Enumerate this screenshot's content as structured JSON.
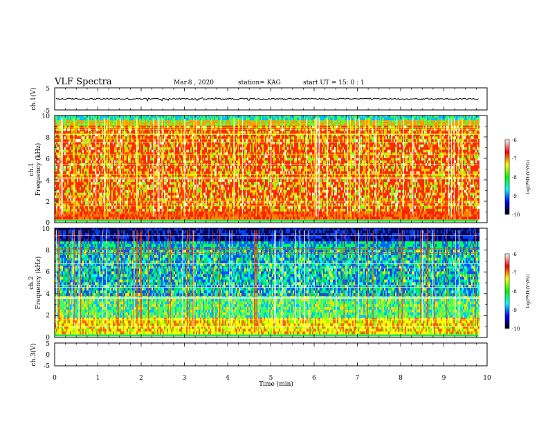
{
  "header": {
    "title": "VLF Spectra",
    "date": "Mar.8 , 2020",
    "station": "station= KAG",
    "start": "start UT = 15: 0 : 1"
  },
  "colorbar": {
    "label": "log(PSD)(V²/Hz)",
    "ticks": [
      "-6",
      "-7",
      "-8",
      "-9",
      "-10"
    ],
    "stops": [
      "#ffffff",
      "#ff0000",
      "#ffff00",
      "#00ff00",
      "#00ffff",
      "#0000ff",
      "#000000"
    ]
  },
  "chart_data": [
    {
      "type": "line",
      "panel": "ch1-waveform",
      "ylabel": "ch.1(V)",
      "ylim": [
        -5,
        5
      ],
      "y_tick_labels": [
        "5",
        "-5"
      ],
      "xlim": [
        0,
        10
      ],
      "x_unit": "min",
      "trace_level_V": 0,
      "trace_color": "#000000"
    },
    {
      "type": "heatmap",
      "panel": "ch1-spectrogram",
      "ylabel_channel": "ch.1",
      "ylabel": "Frequency (kHz)",
      "y_tick_labels": [
        "0",
        "2",
        "4",
        "6",
        "8",
        "10"
      ],
      "ylim": [
        0,
        10
      ],
      "xlim": [
        0,
        10
      ],
      "data_extent_min": 9.8,
      "value_range": [
        -10,
        -6
      ],
      "dominant_colors": [
        "#ff2000",
        "#ffff00",
        "#00ff40"
      ]
    },
    {
      "type": "heatmap",
      "panel": "ch2-spectrogram",
      "ylabel_channel": "ch.2",
      "ylabel": "Frequency (kHz)",
      "y_tick_labels": [
        "0",
        "2",
        "4",
        "6",
        "8",
        "10"
      ],
      "ylim": [
        0,
        10
      ],
      "xlim": [
        0,
        10
      ],
      "data_extent_min": 9.8,
      "value_range": [
        -10,
        -6
      ],
      "dominant_colors": [
        "#00ff80",
        "#0040ff",
        "#ffff00"
      ]
    },
    {
      "type": "line",
      "panel": "ch3-waveform",
      "ylabel": "ch.3(V)",
      "ylim": [
        -5,
        5
      ],
      "y_tick_labels": [
        "5",
        "0",
        "-5"
      ],
      "xlim": [
        0,
        10
      ],
      "x_unit": "min"
    }
  ],
  "xaxis": {
    "label": "Time (min)",
    "ticks": [
      "0",
      "1",
      "2",
      "3",
      "4",
      "5",
      "6",
      "7",
      "8",
      "9",
      "10"
    ]
  }
}
